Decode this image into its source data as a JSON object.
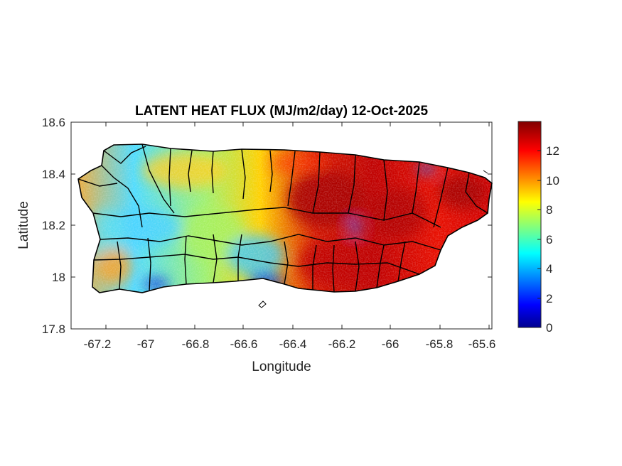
{
  "chart_data": {
    "type": "heatmap",
    "title": "LATENT HEAT FLUX (MJ/m2/day) 12-Oct-2025",
    "xlabel": "Longitude",
    "ylabel": "Latitude",
    "xlim": [
      -67.3,
      -65.59
    ],
    "ylim": [
      17.8,
      18.6
    ],
    "x_ticks": [
      -67.2,
      -67,
      -66.8,
      -66.6,
      -66.4,
      -66.2,
      -66,
      -65.8,
      -65.6
    ],
    "x_tick_labels": [
      "-67.2",
      "-67",
      "-66.8",
      "-66.6",
      "-66.4",
      "-66.2",
      "-66",
      "-65.8",
      "-65.6"
    ],
    "y_ticks": [
      17.8,
      18,
      18.2,
      18.4,
      18.6
    ],
    "y_tick_labels": [
      "17.8",
      "18",
      "18.2",
      "18.4",
      "18.6"
    ],
    "colorbar": {
      "colormap": "jet",
      "range": [
        0,
        14
      ],
      "ticks": [
        0,
        2,
        4,
        6,
        8,
        10,
        12
      ],
      "tick_labels": [
        "0",
        "2",
        "4",
        "6",
        "8",
        "10",
        "12"
      ]
    },
    "grid": false,
    "approx_regional_values": [
      {
        "region": "west",
        "value": 6.5
      },
      {
        "region": "south-central coast",
        "value": 3
      },
      {
        "region": "north-central",
        "value": 9
      },
      {
        "region": "east-central interior",
        "value": 13
      },
      {
        "region": "far east",
        "value": 12
      }
    ]
  }
}
